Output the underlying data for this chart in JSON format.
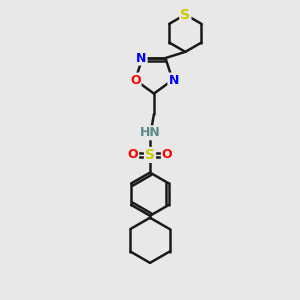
{
  "bg_color": "#e8e8e8",
  "bond_color": "#1a1a1a",
  "S_color": "#cccc00",
  "N_color": "#0000ff",
  "O_color": "#ff0000",
  "H_color": "#5a8a8a",
  "line_width": 1.8,
  "xlim": [
    -1.6,
    1.6
  ],
  "ylim": [
    -3.2,
    2.8
  ]
}
